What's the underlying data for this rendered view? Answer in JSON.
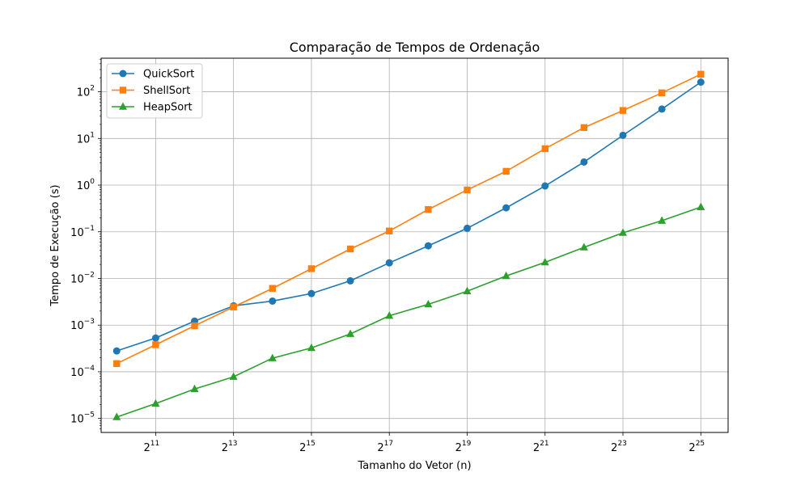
{
  "chart_data": {
    "type": "line",
    "title": "Comparação de Tempos de Ordenação",
    "xlabel": "Tamanho do Vetor (n)",
    "ylabel": "Tempo de Execução (s)",
    "x_scale": "log2",
    "y_scale": "log10",
    "x_exponents": [
      10,
      11,
      12,
      13,
      14,
      15,
      16,
      17,
      18,
      19,
      20,
      21,
      22,
      23,
      24,
      25
    ],
    "x_ticks": [
      {
        "base": "2",
        "exp": "11",
        "value": 11
      },
      {
        "base": "2",
        "exp": "13",
        "value": 13
      },
      {
        "base": "2",
        "exp": "15",
        "value": 15
      },
      {
        "base": "2",
        "exp": "17",
        "value": 17
      },
      {
        "base": "2",
        "exp": "19",
        "value": 19
      },
      {
        "base": "2",
        "exp": "21",
        "value": 21
      },
      {
        "base": "2",
        "exp": "23",
        "value": 23
      },
      {
        "base": "2",
        "exp": "25",
        "value": 25
      }
    ],
    "y_ticks": [
      {
        "base": "10",
        "exp": "−5",
        "value": -5
      },
      {
        "base": "10",
        "exp": "−4",
        "value": -4
      },
      {
        "base": "10",
        "exp": "−3",
        "value": -3
      },
      {
        "base": "10",
        "exp": "−2",
        "value": -2
      },
      {
        "base": "10",
        "exp": "−1",
        "value": -1
      },
      {
        "base": "10",
        "exp": "0",
        "value": 0
      },
      {
        "base": "10",
        "exp": "1",
        "value": 1
      },
      {
        "base": "10",
        "exp": "2",
        "value": 2
      }
    ],
    "xlim_exp": [
      9.6,
      25.7
    ],
    "ylim_log": [
      -5.3,
      2.72
    ],
    "grid": true,
    "legend_position": "top-left",
    "series": [
      {
        "name": "QuickSort",
        "color": "#1f77b4",
        "marker": "circle",
        "values": [
          0.00028,
          0.00053,
          0.00122,
          0.00259,
          0.00328,
          0.00475,
          0.0089,
          0.0216,
          0.0501,
          0.119,
          0.326,
          0.96,
          3.13,
          11.7,
          42.7,
          161
        ]
      },
      {
        "name": "ShellSort",
        "color": "#ff7f0e",
        "marker": "square",
        "values": [
          0.00015,
          0.00038,
          0.00097,
          0.00245,
          0.00613,
          0.0162,
          0.0429,
          0.104,
          0.301,
          0.789,
          1.98,
          6.03,
          17.1,
          39.8,
          95.1,
          238
        ]
      },
      {
        "name": "HeapSort",
        "color": "#2ca02c",
        "marker": "triangle",
        "values": [
          1.07e-05,
          2.09e-05,
          4.27e-05,
          7.83e-05,
          0.000196,
          0.000325,
          0.000648,
          0.00159,
          0.00279,
          0.00534,
          0.0113,
          0.0222,
          0.0465,
          0.0953,
          0.173,
          0.339
        ]
      }
    ]
  }
}
